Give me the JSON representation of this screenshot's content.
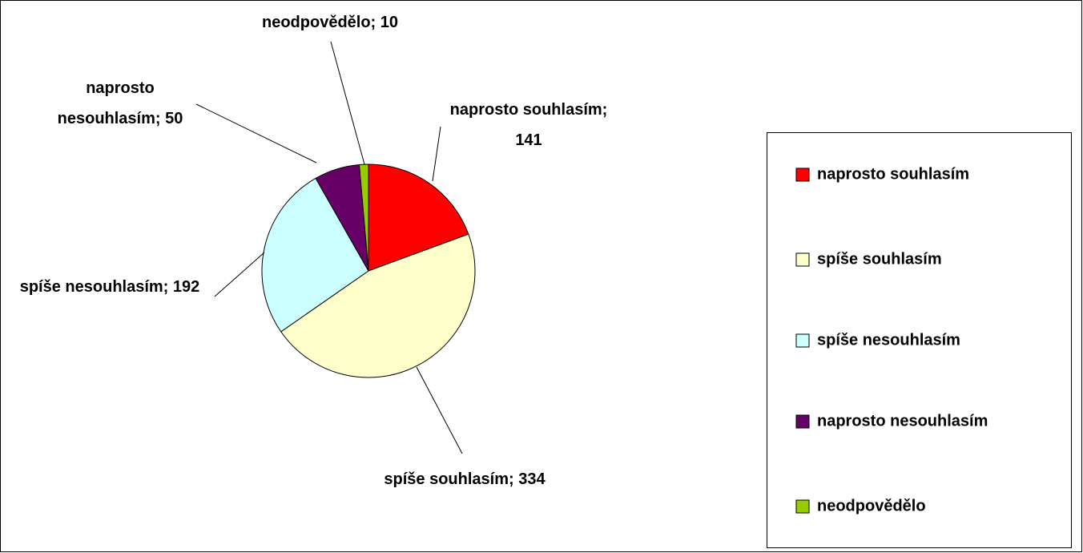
{
  "chart_data": {
    "type": "pie",
    "categories": [
      "naprosto souhlasím",
      "spíše souhlasím",
      "spíše nesouhlasím",
      "naprosto nesouhlasím",
      "neodpovědělo"
    ],
    "values": [
      141,
      334,
      192,
      50,
      10
    ],
    "value_labels": [
      "naprosto souhlasím; 141",
      "spíše souhlasím; 334",
      "spíše nesouhlasím; 192",
      "naprosto nesouhlasím; 50",
      "neodpovědělo; 10"
    ],
    "colors": [
      "#ff0000",
      "#ffffcc",
      "#ccffff",
      "#660066",
      "#99cc00"
    ],
    "legend": "right"
  }
}
